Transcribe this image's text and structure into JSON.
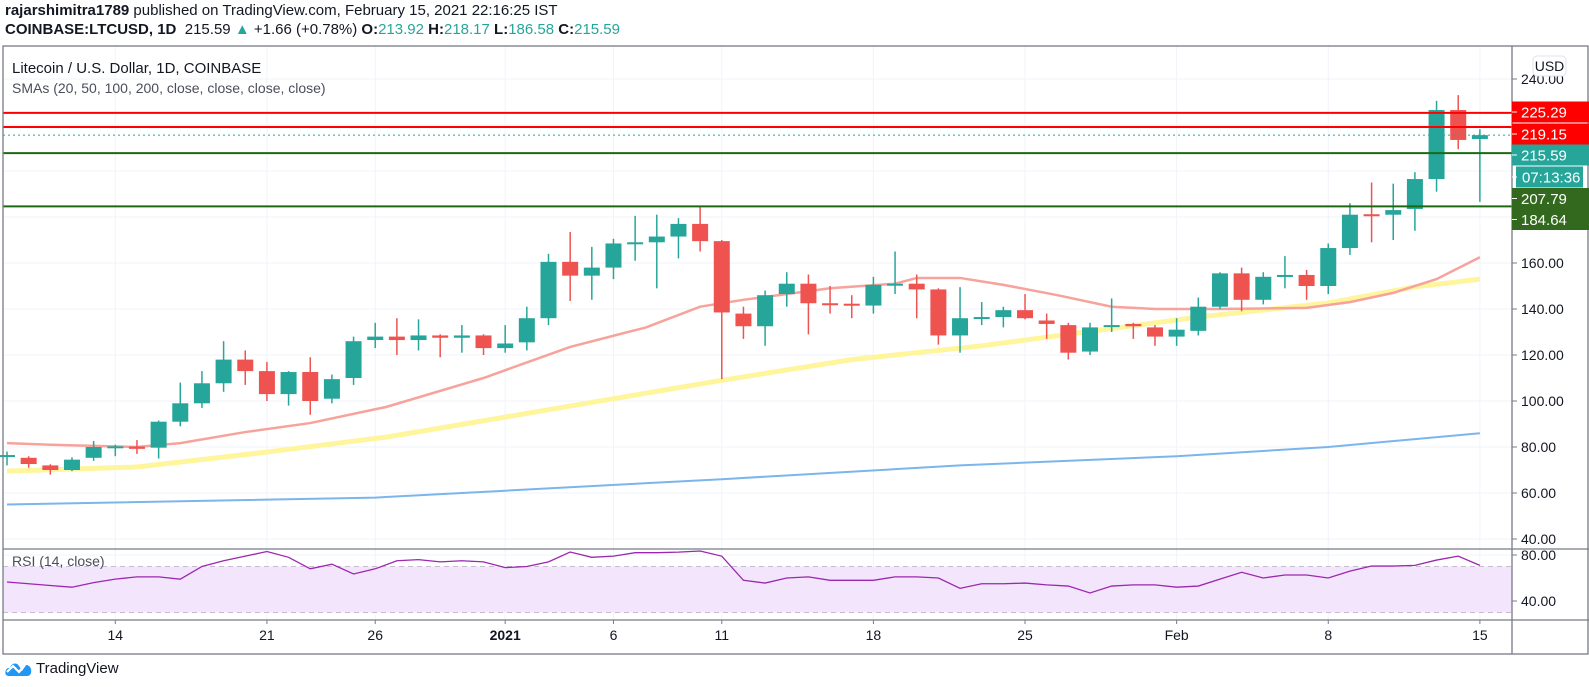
{
  "header": {
    "author": "rajarshimitra1789",
    "published_text": "published on TradingView.com, February 15, 2021 22:16:25 IST",
    "symbol": "COINBASE:LTCUSD, 1D",
    "last_price": "215.59",
    "change": "+1.66 (+0.78%)",
    "o_label": "O:",
    "o_value": "213.92",
    "h_label": "H:",
    "h_value": "218.17",
    "l_label": "L:",
    "l_value": "186.58",
    "c_label": "C:",
    "c_value": "215.59"
  },
  "legend": {
    "title": "Litecoin / U.S. Dollar, 1D, COINBASE",
    "smas": "SMAs (20, 50, 100, 200, close, close, close, close)",
    "rsi": "RSI (14, close)"
  },
  "currency_button": "USD",
  "countdown": "07:13:36",
  "logo_text": "TradingView",
  "colors": {
    "up": "#26a69a",
    "down": "#ef5350",
    "sma20": "#f7a29a",
    "sma50": "#fff59d",
    "sma200": "#7cb5ec",
    "rsi": "#9c27b0",
    "rsi_band": "#f3e5fc",
    "resistance": "#ff0000",
    "support": "#1b6a12"
  },
  "chart_data": {
    "type": "candlestick",
    "title": "Litecoin / U.S. Dollar, 1D, COINBASE",
    "ylim": [
      22,
      250
    ],
    "y_ticks": [
      40,
      60,
      80,
      100,
      120,
      140,
      160,
      240
    ],
    "y_tick_labels": [
      "40.00",
      "60.00",
      "80.00",
      "100.00",
      "120.00",
      "140.00",
      "160.00",
      "240.00"
    ],
    "x_ticks": [
      {
        "i": 5,
        "label": "14"
      },
      {
        "i": 12,
        "label": "21"
      },
      {
        "i": 17,
        "label": "26"
      },
      {
        "i": 23,
        "label": "2021",
        "bold": true
      },
      {
        "i": 28,
        "label": "6"
      },
      {
        "i": 33,
        "label": "11"
      },
      {
        "i": 40,
        "label": "18"
      },
      {
        "i": 47,
        "label": "25"
      },
      {
        "i": 54,
        "label": "Feb"
      },
      {
        "i": 61,
        "label": "8"
      },
      {
        "i": 68,
        "label": "15"
      }
    ],
    "ohlc": [
      [
        76,
        78,
        72,
        76.5
      ],
      [
        75.3,
        76,
        71,
        72.6
      ],
      [
        72,
        72.5,
        68,
        70
      ],
      [
        70,
        75.5,
        69.5,
        74.5
      ],
      [
        75.3,
        82.6,
        74,
        80
      ],
      [
        80,
        81,
        76,
        80.3
      ],
      [
        80.2,
        83,
        77,
        79.2
      ],
      [
        79.7,
        91.5,
        75,
        91
      ],
      [
        91,
        108,
        89,
        99
      ],
      [
        99,
        113,
        97,
        107.7
      ],
      [
        107.7,
        126,
        104,
        118
      ],
      [
        118,
        122,
        107,
        113
      ],
      [
        113,
        117,
        100,
        103
      ],
      [
        103,
        113,
        98,
        112.6
      ],
      [
        112.6,
        119,
        94,
        100
      ],
      [
        101,
        111.5,
        99,
        109.5
      ],
      [
        110,
        128,
        107,
        126
      ],
      [
        126.5,
        134,
        123,
        128
      ],
      [
        128,
        136,
        120,
        126.5
      ],
      [
        126.5,
        135.5,
        122,
        128.5
      ],
      [
        128.5,
        129,
        119,
        127.5
      ],
      [
        127.5,
        133,
        121,
        128.5
      ],
      [
        128.5,
        129,
        120,
        123
      ],
      [
        123,
        133,
        121,
        125
      ],
      [
        125.5,
        141,
        122,
        136
      ],
      [
        136,
        164,
        133,
        160.5
      ],
      [
        160.5,
        173.5,
        143.5,
        154.5
      ],
      [
        154.5,
        167,
        144,
        158
      ],
      [
        158,
        170.5,
        153,
        168.5
      ],
      [
        168.5,
        180.5,
        161,
        169
      ],
      [
        169,
        181,
        149,
        171.5
      ],
      [
        171.5,
        179.5,
        162,
        177
      ],
      [
        177,
        184.5,
        165,
        169.5
      ],
      [
        169.5,
        170,
        109.5,
        138.5
      ],
      [
        138,
        141,
        127,
        132.5
      ],
      [
        132.5,
        148,
        124,
        146
      ],
      [
        146.5,
        156,
        141,
        151
      ],
      [
        151,
        155,
        129,
        142.5
      ],
      [
        142.5,
        150,
        138,
        142.3
      ],
      [
        142.3,
        146,
        136,
        142
      ],
      [
        141.5,
        154,
        138,
        150.5
      ],
      [
        150.5,
        165,
        146.5,
        151
      ],
      [
        151,
        155,
        136,
        148.5
      ],
      [
        148.5,
        149,
        124.5,
        128.5
      ],
      [
        128.5,
        149.5,
        121,
        136
      ],
      [
        136.2,
        143,
        133,
        136.5
      ],
      [
        136.5,
        141,
        132,
        139.5
      ],
      [
        139.5,
        146.5,
        135.5,
        136
      ],
      [
        135,
        138,
        127,
        133.5
      ],
      [
        133,
        134,
        118,
        121
      ],
      [
        121.5,
        134,
        120,
        132
      ],
      [
        132.5,
        144.6,
        130,
        133
      ],
      [
        133.5,
        134,
        127,
        132.5
      ],
      [
        132,
        133,
        124,
        128
      ],
      [
        128,
        136,
        124,
        131
      ],
      [
        130.5,
        145,
        128.5,
        141
      ],
      [
        141,
        156,
        140,
        155.5
      ],
      [
        155.5,
        158,
        139,
        144
      ],
      [
        144,
        156,
        142,
        154
      ],
      [
        154.3,
        163,
        149,
        154.8
      ],
      [
        154.8,
        157,
        144,
        150
      ],
      [
        150,
        168.5,
        146.5,
        166.5
      ],
      [
        166.5,
        186,
        163.5,
        181
      ],
      [
        181.2,
        195,
        169,
        181
      ],
      [
        181,
        194.5,
        170,
        183
      ],
      [
        183.5,
        199.5,
        174,
        196.5
      ],
      [
        196.5,
        230.5,
        191,
        226.5
      ],
      [
        226.5,
        233,
        209.5,
        213.5
      ],
      [
        213.92,
        218.17,
        186.58,
        215.59
      ]
    ],
    "sma20": [
      [
        0,
        81.7
      ],
      [
        2,
        81
      ],
      [
        6,
        80
      ],
      [
        8,
        81.7
      ],
      [
        11,
        86.5
      ],
      [
        14,
        90.4
      ],
      [
        17.5,
        97.4
      ],
      [
        22,
        110
      ],
      [
        26,
        123.5
      ],
      [
        29.5,
        132
      ],
      [
        32,
        141
      ],
      [
        34,
        144
      ],
      [
        38,
        149
      ],
      [
        41,
        151
      ],
      [
        42,
        153.5
      ],
      [
        44,
        153.5
      ],
      [
        46,
        150.5
      ],
      [
        48.5,
        146
      ],
      [
        51,
        141
      ],
      [
        53,
        140
      ],
      [
        56,
        140
      ],
      [
        60,
        140.5
      ],
      [
        62,
        143
      ],
      [
        64,
        147
      ],
      [
        66,
        153
      ],
      [
        68,
        162.5
      ]
    ],
    "sma50": [
      [
        0,
        69.5
      ],
      [
        6,
        71.3
      ],
      [
        12,
        77.8
      ],
      [
        17.5,
        84.3
      ],
      [
        23,
        93
      ],
      [
        28,
        101
      ],
      [
        33,
        109
      ],
      [
        39,
        118
      ],
      [
        45,
        124
      ],
      [
        51,
        131.5
      ],
      [
        55,
        136.5
      ],
      [
        61,
        142.6
      ],
      [
        65,
        149.6
      ],
      [
        68,
        153
      ]
    ],
    "sma200": [
      [
        0,
        55
      ],
      [
        17,
        58
      ],
      [
        23,
        61
      ],
      [
        33,
        66
      ],
      [
        44,
        72
      ],
      [
        54,
        76
      ],
      [
        61,
        80
      ],
      [
        68,
        86
      ]
    ],
    "rsi": [
      56.5,
      55,
      53.5,
      52,
      56,
      59,
      61,
      61,
      59,
      70,
      75,
      79,
      83,
      78,
      68,
      72,
      63.5,
      68,
      75,
      76,
      74,
      75,
      74,
      69,
      70,
      74,
      82.6,
      78,
      79,
      82,
      82,
      82.5,
      83.5,
      79,
      58,
      55.6,
      60,
      61,
      58,
      58,
      58,
      61,
      61,
      60,
      51,
      55,
      55,
      55.6,
      54,
      53,
      47,
      53,
      54,
      54,
      52,
      53,
      59,
      65,
      60,
      62.6,
      62.6,
      60,
      66,
      70.4,
      70.4,
      71,
      75.6,
      79,
      71
    ],
    "rsi_ticks": [
      80,
      40
    ],
    "rsi_tick_labels": [
      "80.00",
      "40.00"
    ],
    "rsi_bands": [
      70,
      30
    ],
    "price_lines": [
      {
        "value": 225.29,
        "label": "225.29",
        "kind": "resistance"
      },
      {
        "value": 219.15,
        "label": "219.15",
        "kind": "resistance"
      },
      {
        "value": 207.79,
        "label": "207.79",
        "kind": "support"
      },
      {
        "value": 184.64,
        "label": "184.64",
        "kind": "support"
      }
    ],
    "current_price": {
      "value": 215.59,
      "label": "215.59"
    }
  }
}
